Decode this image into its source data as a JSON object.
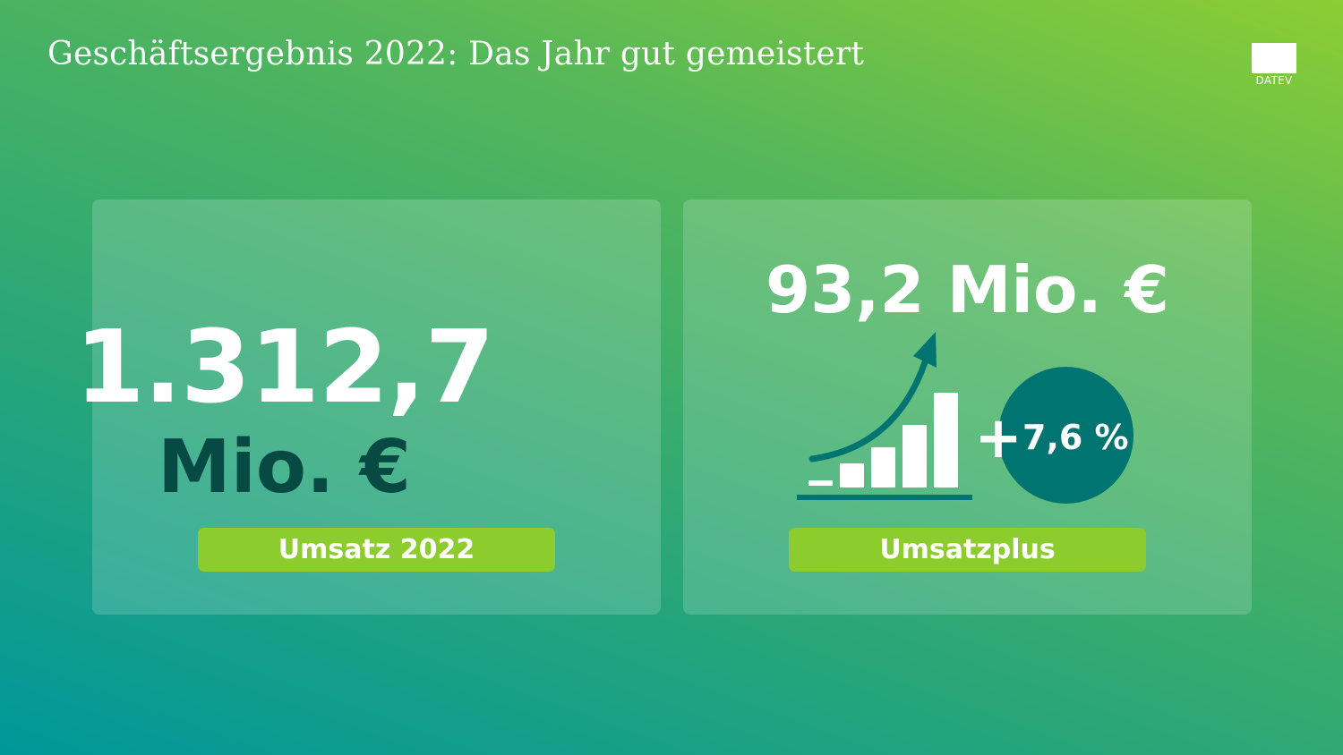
{
  "header": {
    "title": "Geschäftsergebnis 2022: Das Jahr gut gemeistert"
  },
  "logo": {
    "text": "DATEV"
  },
  "revenue": {
    "value": "1.312,7",
    "unit": "Mio. €",
    "label": "Umsatz 2022"
  },
  "growth": {
    "amount": "93,2 Mio. €",
    "plus": "+",
    "percent": "7,6 %",
    "label": "Umsatzplus"
  },
  "icons": [
    "growth-bar-chart-icon",
    "up-arrow-icon"
  ],
  "colors": {
    "pill": "#8ccc2c",
    "badge": "#007470",
    "dark_text": "#074a44",
    "white": "#ffffff"
  }
}
